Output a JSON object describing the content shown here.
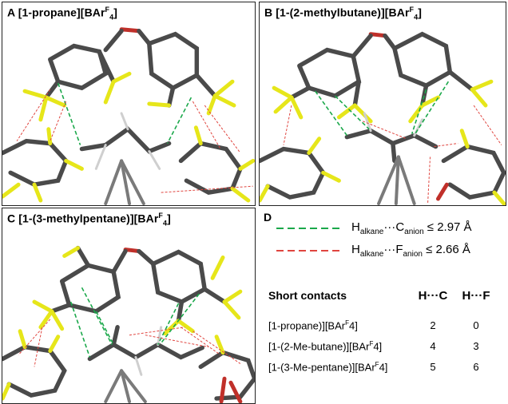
{
  "panels": {
    "a": {
      "letter": "A",
      "title_pre": "[1-propane][BAr",
      "title_sup": "F",
      "title_sub": "4",
      "title_post": "]"
    },
    "b": {
      "letter": "B",
      "title_pre": "[1-(2-methylbutane)][BAr",
      "title_sup": "F",
      "title_sub": "4",
      "title_post": "]"
    },
    "c": {
      "letter": "C",
      "title_pre": "[1-(3-methylpentane)][BAr",
      "title_sup": "F",
      "title_sub": "4",
      "title_post": "]"
    },
    "d": {
      "letter": "D"
    }
  },
  "legend": {
    "green": {
      "color": "#1aa84a",
      "h": "H",
      "h_sub": "alkane",
      "dots": "···",
      "atom": "C",
      "atom_sub": "anion",
      "rel": " ≤ 2.97 Å"
    },
    "red": {
      "color": "#e0453f",
      "h": "H",
      "h_sub": "alkane",
      "dots": "···",
      "atom": "F",
      "atom_sub": "anion",
      "rel": " ≤ 2.66 Å"
    }
  },
  "table": {
    "header": {
      "label": "Short contacts",
      "col_hc": "H···C",
      "col_hf": "H···F"
    },
    "rows": [
      {
        "pre": "[1-propane)][BAr",
        "sup": "F",
        "post": "4]",
        "hc": "2",
        "hf": "0"
      },
      {
        "pre": "[1-(2-Me-butane)][BAr",
        "sup": "F",
        "post": "4]",
        "hc": "4",
        "hf": "3"
      },
      {
        "pre": "[1-(3-Me-pentane)][BAr",
        "sup": "F",
        "post": "4]",
        "hc": "5",
        "hf": "6"
      }
    ]
  },
  "colors": {
    "carbon": "#4a4a4a",
    "hydrogen": "#cfcfcf",
    "fluorine": "#e6e61a",
    "oxygen": "#c0302a",
    "frame": "#222222"
  }
}
